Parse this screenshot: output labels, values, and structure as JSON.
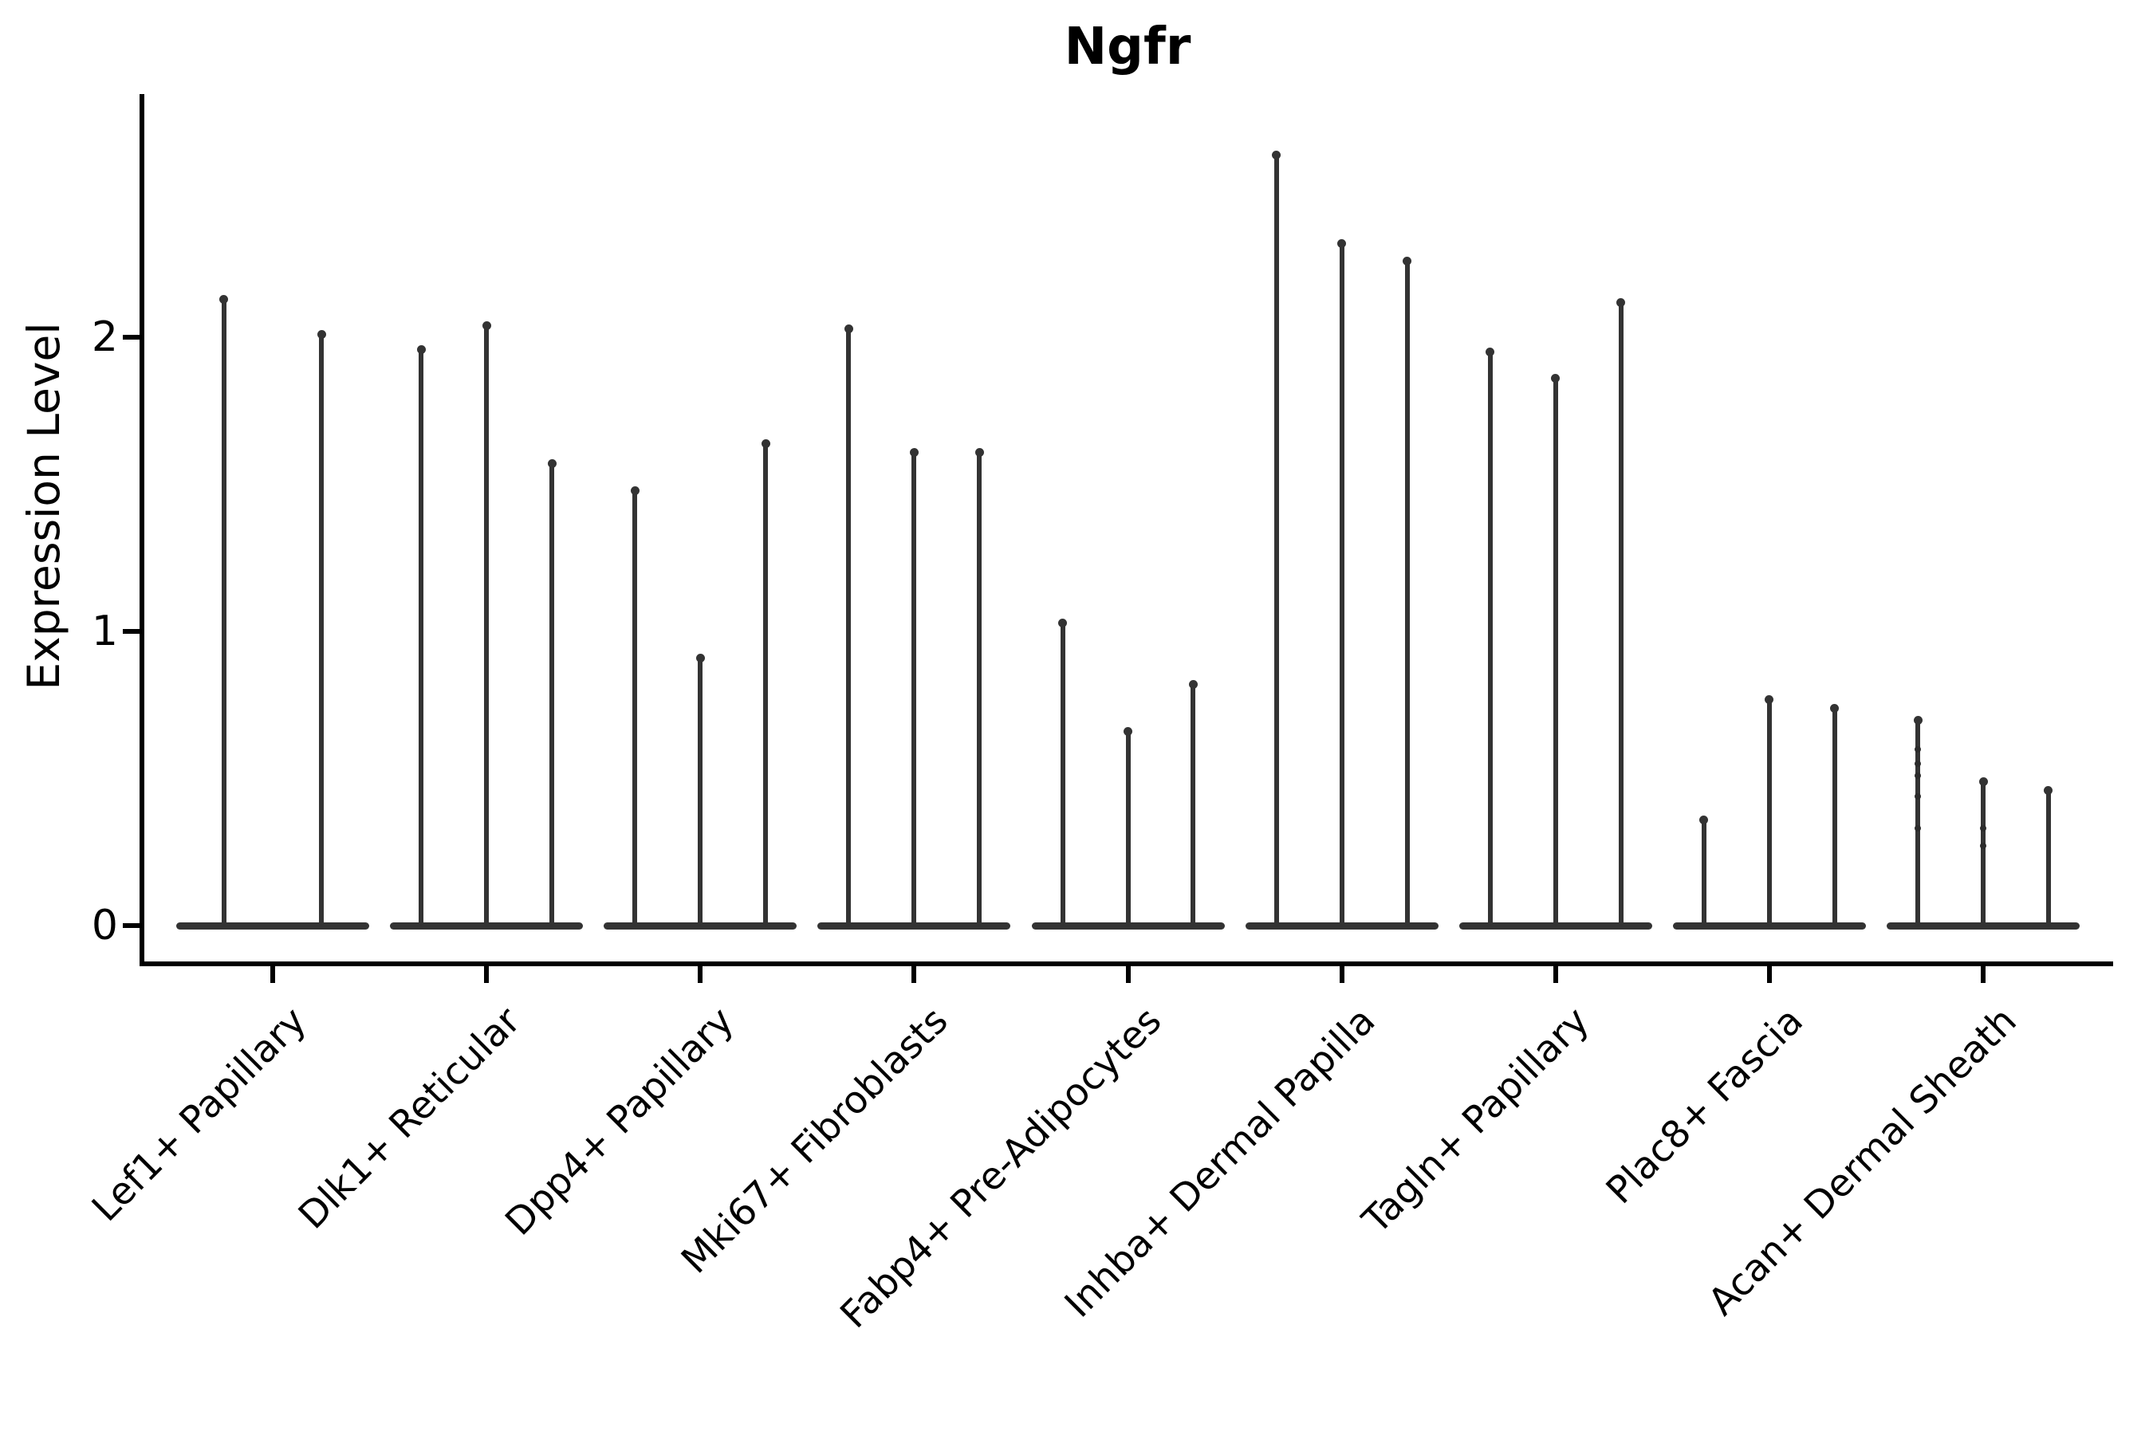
{
  "chart_data": {
    "type": "violin",
    "title": "Ngfr",
    "ylabel": "Expression Level",
    "xlabel": "",
    "legend": null,
    "grid": false,
    "ylim": [
      -0.13,
      2.82
    ],
    "y_ticks": [
      "0",
      "1",
      "2"
    ],
    "y_tick_values": [
      0,
      1,
      2
    ],
    "categories": [
      "Lef1+ Papillary",
      "Dlk1+ Reticular",
      "Dpp4+ Papillary",
      "Mki67+ Fibroblasts",
      "Fabp4+ Pre-Adipocytes",
      "Inhba+ Dermal Papilla",
      "Tagln+ Papillary",
      "Plac8+ Fascia",
      "Acan+ Dermal Sheath"
    ],
    "groups": [
      {
        "label": "Lef1+ Papillary",
        "violins": [
          {
            "max": 2.14
          },
          {
            "max": 2.02
          }
        ]
      },
      {
        "label": "Dlk1+ Reticular",
        "violins": [
          {
            "max": 1.97
          },
          {
            "max": 2.05
          },
          {
            "max": 1.58
          }
        ]
      },
      {
        "label": "Dpp4+ Papillary",
        "violins": [
          {
            "max": 1.49
          },
          {
            "max": 0.92
          },
          {
            "max": 1.65
          }
        ]
      },
      {
        "label": "Mki67+ Fibroblasts",
        "violins": [
          {
            "max": 2.04
          },
          {
            "max": 1.62
          },
          {
            "max": 1.62
          }
        ]
      },
      {
        "label": "Fabp4+ Pre-Adipocytes",
        "violins": [
          {
            "max": 1.04
          },
          {
            "max": 0.67
          },
          {
            "max": 0.83
          }
        ]
      },
      {
        "label": "Inhba+ Dermal Papilla",
        "violins": [
          {
            "max": 2.63
          },
          {
            "max": 2.33
          },
          {
            "max": 2.27
          }
        ]
      },
      {
        "label": "Tagln+ Papillary",
        "violins": [
          {
            "max": 1.96
          },
          {
            "max": 1.87
          },
          {
            "max": 2.13
          }
        ]
      },
      {
        "label": "Plac8+ Fascia",
        "violins": [
          {
            "max": 0.37
          },
          {
            "max": 0.78
          },
          {
            "max": 0.75
          }
        ]
      },
      {
        "label": "Acan+ Dermal Sheath",
        "violins": [
          {
            "max": 0.71,
            "dots": [
              0.6,
              0.55,
              0.51,
              0.44,
              0.33
            ]
          },
          {
            "max": 0.5,
            "dots": [
              0.33,
              0.27
            ]
          },
          {
            "max": 0.47
          }
        ]
      }
    ],
    "colors": {
      "violin": "#333333",
      "axis": "#000000",
      "text": "#000000",
      "background": "#ffffff"
    }
  }
}
